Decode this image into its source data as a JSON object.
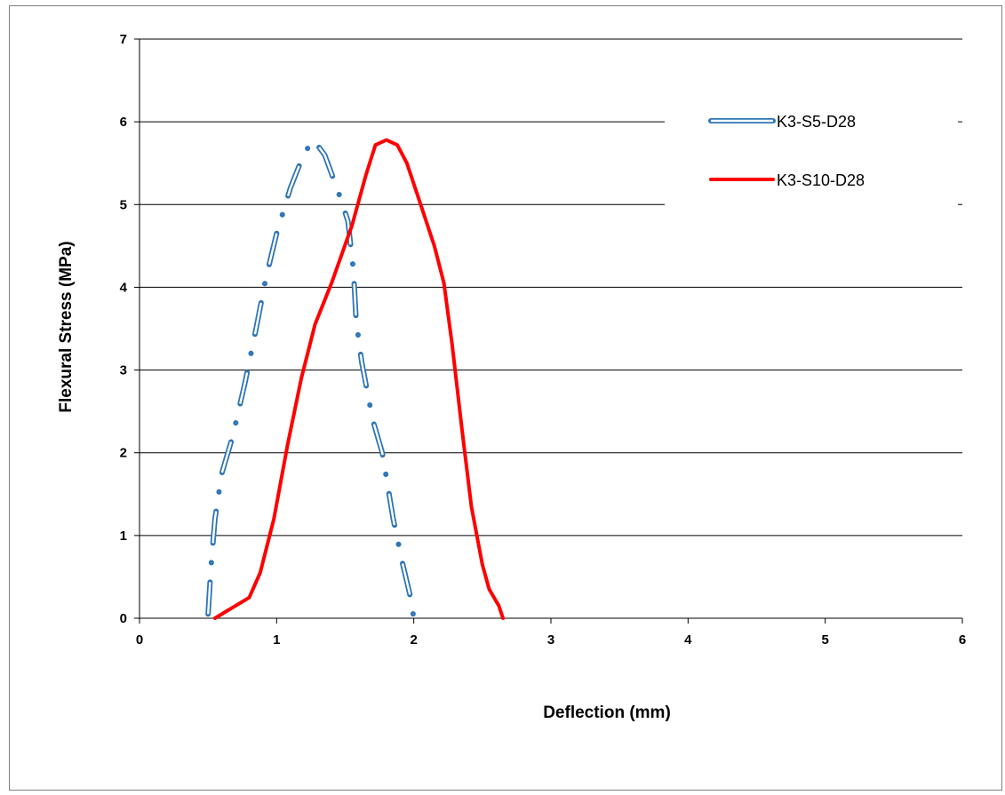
{
  "chart_data": {
    "type": "line",
    "title": "",
    "xlabel": "Deflection (mm)",
    "ylabel": "Flexural Stress (MPa)",
    "xlim": [
      0,
      6
    ],
    "ylim": [
      0,
      7
    ],
    "x_ticks": [
      "0",
      "1",
      "2",
      "3",
      "4",
      "5",
      "6"
    ],
    "y_ticks": [
      "0",
      "1",
      "2",
      "3",
      "4",
      "5",
      "6",
      "7"
    ],
    "grid": "horizontal",
    "legend_position": "top-right",
    "series": [
      {
        "name": "K3-S5-D28",
        "color": "#2e75b6",
        "style": "hollow dash-dot",
        "points": [
          [
            0.5,
            0.05
          ],
          [
            0.52,
            0.6
          ],
          [
            0.55,
            1.2
          ],
          [
            0.6,
            1.75
          ],
          [
            0.68,
            2.2
          ],
          [
            0.77,
            2.85
          ],
          [
            0.85,
            3.5
          ],
          [
            0.92,
            4.1
          ],
          [
            1.0,
            4.65
          ],
          [
            1.1,
            5.2
          ],
          [
            1.2,
            5.62
          ],
          [
            1.27,
            5.78
          ],
          [
            1.35,
            5.6
          ],
          [
            1.45,
            5.15
          ],
          [
            1.52,
            4.8
          ],
          [
            1.56,
            4.2
          ],
          [
            1.58,
            3.6
          ],
          [
            1.62,
            3.1
          ],
          [
            1.7,
            2.4
          ],
          [
            1.77,
            2.0
          ],
          [
            1.85,
            1.2
          ],
          [
            1.92,
            0.65
          ],
          [
            1.97,
            0.3
          ],
          [
            2.0,
            0.0
          ]
        ]
      },
      {
        "name": "K3-S10-D28",
        "color": "#ff0000",
        "style": "solid",
        "points": [
          [
            0.55,
            0.0
          ],
          [
            0.63,
            0.08
          ],
          [
            0.72,
            0.17
          ],
          [
            0.8,
            0.25
          ],
          [
            0.88,
            0.55
          ],
          [
            0.98,
            1.2
          ],
          [
            1.08,
            2.1
          ],
          [
            1.18,
            2.9
          ],
          [
            1.28,
            3.55
          ],
          [
            1.4,
            4.05
          ],
          [
            1.55,
            4.75
          ],
          [
            1.65,
            5.35
          ],
          [
            1.72,
            5.72
          ],
          [
            1.8,
            5.78
          ],
          [
            1.88,
            5.72
          ],
          [
            1.95,
            5.5
          ],
          [
            2.05,
            5.0
          ],
          [
            2.15,
            4.5
          ],
          [
            2.22,
            4.05
          ],
          [
            2.28,
            3.3
          ],
          [
            2.35,
            2.3
          ],
          [
            2.42,
            1.35
          ],
          [
            2.5,
            0.65
          ],
          [
            2.55,
            0.35
          ],
          [
            2.62,
            0.15
          ],
          [
            2.65,
            0.0
          ]
        ]
      }
    ]
  }
}
